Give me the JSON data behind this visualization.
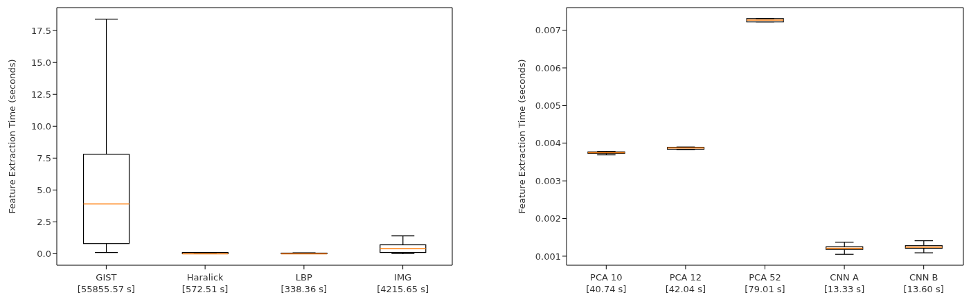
{
  "chart_data": [
    {
      "type": "box",
      "ylabel": "Feature Extraction Time (seconds)",
      "categories": [
        "GIST\n[55855.57 s]",
        "Haralick\n[572.51 s]",
        "LBP\n[338.36 s]",
        "IMG\n[4215.65 s]"
      ],
      "ylim": [
        -0.9,
        19.3
      ],
      "yticks": [
        {
          "value": 0,
          "label": "0.0"
        },
        {
          "value": 2.5,
          "label": "2.5"
        },
        {
          "value": 5,
          "label": "5.0"
        },
        {
          "value": 7.5,
          "label": "7.5"
        },
        {
          "value": 10,
          "label": "10.0"
        },
        {
          "value": 12.5,
          "label": "12.5"
        },
        {
          "value": 15,
          "label": "15.0"
        },
        17.5
      ],
      "grid": false,
      "series": [
        {
          "color": "#000000",
          "boxes": [
            {
              "low": 0.1,
              "q1": 0.8,
              "median": 3.9,
              "q3": 7.8,
              "high": 18.4
            },
            {
              "low": 0,
              "q1": 0,
              "median": 0,
              "q3": 0.1,
              "high": 0.1
            },
            {
              "low": 0,
              "q1": 0,
              "median": 0,
              "q3": 0.05,
              "high": 0.07
            },
            {
              "low": 0,
              "q1": 0.1,
              "median": 0.4,
              "q3": 0.7,
              "high": 1.4
            }
          ]
        }
      ]
    },
    {
      "type": "box",
      "ylabel": "Feature Extraction Time (seconds)",
      "categories": [
        "PCA 10\n[40.74 s]",
        "PCA 12\n[42.04 s]",
        "PCA 52\n[79.01 s]",
        "CNN A\n[13.33 s]",
        "CNN B\n[13.60 s]"
      ],
      "ylim": [
        0.00076,
        0.0076
      ],
      "yticks": [
        0.001,
        0.002,
        0.003,
        0.004,
        0.005,
        0.006,
        0.007
      ],
      "grid": false,
      "series": [
        {
          "color": "#000000",
          "boxes": [
            {
              "low": 0.00369,
              "q1": 0.00373,
              "median": 0.00375,
              "q3": 0.00377,
              "high": 0.00378
            },
            {
              "low": 0.00383,
              "q1": 0.00384,
              "median": 0.00387,
              "q3": 0.00389,
              "high": 0.0039
            },
            {
              "low": 0.00722,
              "q1": 0.00722,
              "median": 0.00727,
              "q3": 0.00731,
              "high": 0.00731
            },
            {
              "low": 0.00105,
              "q1": 0.00118,
              "median": 0.00121,
              "q3": 0.00125,
              "high": 0.00137
            },
            {
              "low": 0.00109,
              "q1": 0.00121,
              "median": 0.00124,
              "q3": 0.00128,
              "high": 0.00141
            }
          ]
        }
      ]
    }
  ]
}
